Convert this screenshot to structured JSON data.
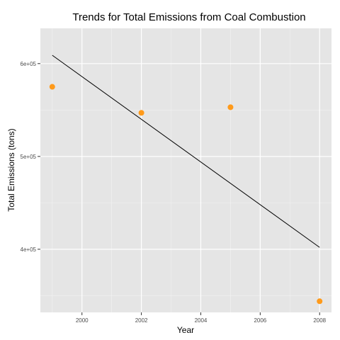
{
  "chart_data": {
    "type": "scatter",
    "title": "Trends for Total Emissions from Coal Combustion",
    "xlabel": "Year",
    "ylabel": "Total Emissions (tons)",
    "xlim": [
      1998.6,
      2008.4
    ],
    "ylim": [
      332000,
      638000
    ],
    "x_ticks": [
      2000,
      2002,
      2004,
      2006,
      2008
    ],
    "x_tick_labels": [
      "2000",
      "2002",
      "2004",
      "2006",
      "2008"
    ],
    "y_ticks": [
      400000,
      500000,
      600000
    ],
    "y_tick_labels": [
      "4e+05",
      "5e+05",
      "6e+05"
    ],
    "grid": true,
    "points": [
      {
        "x": 1999,
        "y": 575000
      },
      {
        "x": 2002,
        "y": 547000
      },
      {
        "x": 2005,
        "y": 553000
      },
      {
        "x": 2008,
        "y": 344000
      }
    ],
    "trend_line": {
      "x": [
        1999,
        2008
      ],
      "y": [
        609000,
        402000
      ]
    },
    "colors": {
      "panel_background": "#e5e5e5",
      "grid_major": "#ffffff",
      "grid_minor": "#f2f2f2",
      "point": "#ff9a1a",
      "trend_line": "#000000"
    }
  }
}
